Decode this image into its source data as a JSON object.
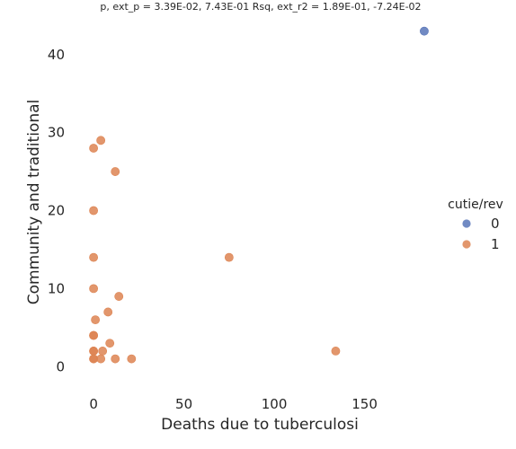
{
  "chart_data": {
    "type": "scatter",
    "title": "p, ext_p = 3.39E-02, 7.43E-01 Rsq, ext_r2 = 1.89E-01, -7.24E-02",
    "xlabel": "Deaths due to tuberculosi",
    "ylabel": "Community and traditional",
    "xlim": [
      -10,
      190
    ],
    "ylim": [
      -2.5,
      44
    ],
    "xticks": [
      0,
      50,
      100,
      150
    ],
    "yticks": [
      0,
      10,
      20,
      30,
      40
    ],
    "grid": false,
    "legend": {
      "title": "cutie/rev",
      "placement": "right"
    },
    "series": [
      {
        "name": "0",
        "color": "#5875b8",
        "points": [
          {
            "x": 183,
            "y": 43
          }
        ]
      },
      {
        "name": "1",
        "color": "#dd8452",
        "points": [
          {
            "x": 4,
            "y": 29
          },
          {
            "x": 0,
            "y": 28
          },
          {
            "x": 12,
            "y": 25
          },
          {
            "x": 0,
            "y": 20
          },
          {
            "x": 0,
            "y": 14
          },
          {
            "x": 75,
            "y": 14
          },
          {
            "x": 0,
            "y": 10
          },
          {
            "x": 14,
            "y": 9
          },
          {
            "x": 8,
            "y": 7
          },
          {
            "x": 1,
            "y": 6
          },
          {
            "x": 0,
            "y": 4
          },
          {
            "x": 0,
            "y": 4
          },
          {
            "x": 9,
            "y": 3
          },
          {
            "x": 0,
            "y": 2
          },
          {
            "x": 0,
            "y": 2
          },
          {
            "x": 5,
            "y": 2
          },
          {
            "x": 134,
            "y": 2
          },
          {
            "x": 0,
            "y": 1
          },
          {
            "x": 0,
            "y": 1
          },
          {
            "x": 4,
            "y": 1
          },
          {
            "x": 12,
            "y": 1
          },
          {
            "x": 21,
            "y": 1
          }
        ]
      }
    ]
  }
}
